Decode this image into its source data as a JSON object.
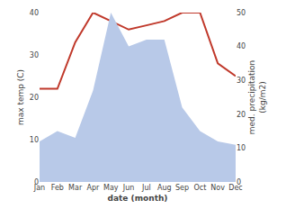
{
  "chart_data": {
    "type": "line",
    "categories": [
      "Jan",
      "Feb",
      "Mar",
      "Apr",
      "May",
      "Jun",
      "Jul",
      "Aug",
      "Sep",
      "Oct",
      "Nov",
      "Dec"
    ],
    "xlabel": "date (month)",
    "ylabel": "max temp (C)",
    "y2label": "med. precipitation\n(kg/m2)",
    "series": [
      {
        "type": "area",
        "axis": "y2",
        "color": "#b8c9e8",
        "values": [
          12,
          15,
          13,
          27,
          50,
          40,
          42,
          42,
          22,
          15,
          12,
          11
        ]
      },
      {
        "type": "line",
        "color": "#c0392b",
        "values": [
          22,
          22,
          33,
          40,
          38,
          36,
          37,
          38,
          40,
          40,
          28,
          25
        ]
      }
    ],
    "ylim": [
      0,
      40
    ],
    "yticks": [
      0,
      10,
      20,
      30,
      40
    ],
    "y2lim": [
      0,
      50
    ],
    "y2ticks": [
      0,
      10,
      20,
      30,
      40,
      50
    ],
    "grid": false
  }
}
